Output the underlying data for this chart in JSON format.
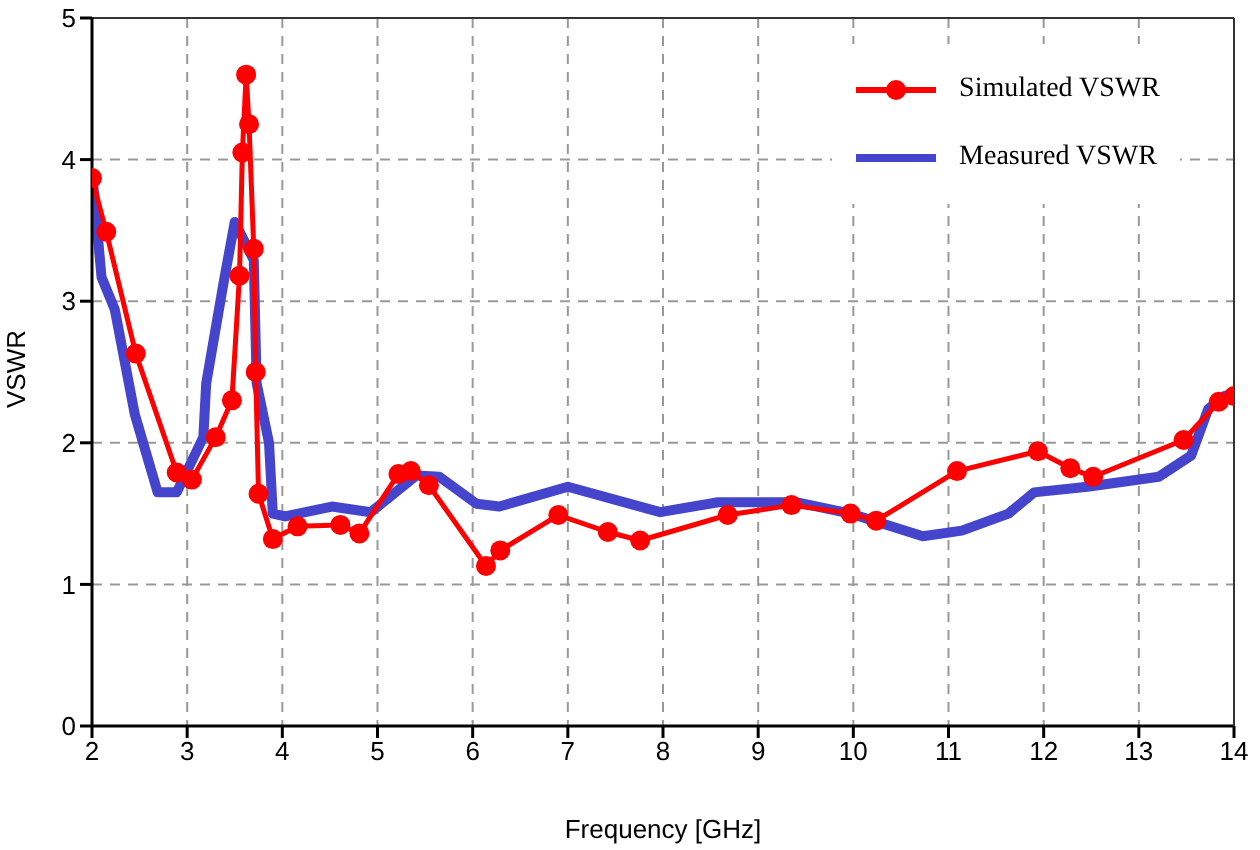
{
  "chart_data": {
    "type": "line",
    "xlabel": "Frequency [GHz]",
    "ylabel": "VSWR",
    "xlim": [
      2,
      14
    ],
    "xticks": [
      2,
      3,
      4,
      5,
      6,
      7,
      8,
      9,
      10,
      11,
      12,
      13,
      14
    ],
    "ylim": [
      0,
      5
    ],
    "yticks": [
      0,
      1,
      2,
      3,
      4,
      5
    ],
    "grid": true,
    "legend": "top right",
    "series": [
      {
        "name": "Simulated VSWR",
        "color": "#ff0000",
        "marker": "circle",
        "x": [
          2.0,
          2.15,
          2.46,
          2.89,
          3.05,
          3.3,
          3.47,
          3.55,
          3.58,
          3.62,
          3.65,
          3.7,
          3.72,
          3.75,
          3.9,
          4.16,
          4.61,
          4.81,
          5.22,
          5.35,
          5.54,
          6.14,
          6.29,
          6.9,
          7.42,
          7.76,
          8.68,
          9.35,
          9.97,
          10.24,
          11.09,
          11.94,
          12.28,
          12.52,
          13.47,
          13.84,
          14.0
        ],
        "values": [
          3.87,
          3.49,
          2.63,
          1.79,
          1.74,
          2.04,
          2.3,
          3.18,
          4.05,
          4.6,
          4.25,
          3.37,
          2.5,
          1.64,
          1.32,
          1.41,
          1.42,
          1.36,
          1.78,
          1.8,
          1.7,
          1.13,
          1.24,
          1.49,
          1.37,
          1.31,
          1.49,
          1.56,
          1.5,
          1.45,
          1.8,
          1.94,
          1.82,
          1.76,
          2.02,
          2.29,
          2.33
        ]
      },
      {
        "name": "Measured VSWR",
        "color": "#4444cc",
        "marker": "none",
        "x": [
          2.0,
          2.1,
          2.24,
          2.45,
          2.69,
          2.89,
          3.17,
          3.2,
          3.38,
          3.5,
          3.7,
          3.73,
          3.86,
          3.9,
          4.03,
          4.52,
          4.93,
          5.41,
          5.65,
          6.04,
          6.28,
          7.0,
          7.97,
          8.58,
          9.41,
          9.97,
          10.73,
          11.14,
          11.63,
          11.9,
          12.46,
          13.21,
          13.55,
          13.73,
          13.9,
          14.0
        ],
        "values": [
          3.92,
          3.17,
          2.94,
          2.2,
          1.65,
          1.65,
          2.04,
          2.42,
          3.12,
          3.56,
          3.29,
          2.42,
          2.0,
          1.5,
          1.48,
          1.55,
          1.51,
          1.77,
          1.76,
          1.57,
          1.55,
          1.69,
          1.51,
          1.58,
          1.58,
          1.5,
          1.34,
          1.38,
          1.5,
          1.65,
          1.69,
          1.76,
          1.91,
          2.24,
          2.33,
          2.35
        ]
      }
    ]
  }
}
